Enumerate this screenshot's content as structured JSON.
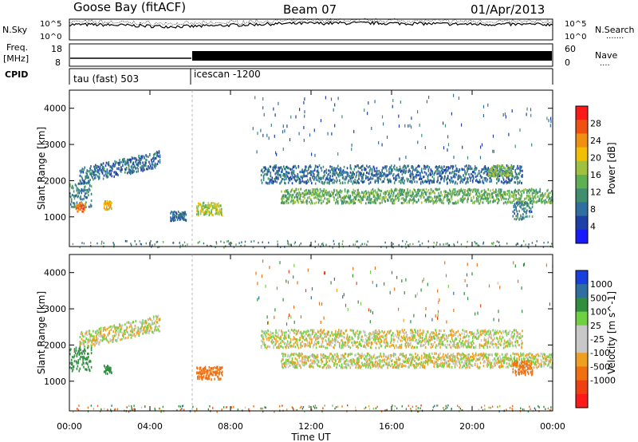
{
  "header": {
    "station": "Goose Bay (fitACF)",
    "beam": "Beam 07",
    "date": "01/Apr/2013"
  },
  "left_labels": {
    "nsky": "N.Sky",
    "freq": "Freq.",
    "freq_unit": "[MHz]",
    "cpid": "CPID"
  },
  "right_labels": {
    "nsearch": "N.Search",
    "nsearch_dots": "·······",
    "nave": "Nave",
    "nave_dots": "····"
  },
  "noise_panel": {
    "tick_top": "10^5",
    "tick_bottom": "10^0",
    "right_tick_top": "10^5",
    "right_tick_bottom": "10^0"
  },
  "freq_panel": {
    "left_ticks": [
      "18",
      "8"
    ],
    "right_ticks": [
      "60",
      "0"
    ]
  },
  "cpid_panel": {
    "segments": [
      "tau (fast) 503",
      "icescan -1200"
    ]
  },
  "colors": {
    "power_scale": [
      "#1a1aff",
      "#1f3fa8",
      "#2f6fa0",
      "#3f8f6f",
      "#5fb050",
      "#a0c040",
      "#f0c000",
      "#f09010",
      "#f05010",
      "#ff1a1a"
    ],
    "velocity_scale": [
      "#ff1a1a",
      "#f04010",
      "#f07010",
      "#f0a020",
      "#c8c8c8",
      "#c8c8c8",
      "#6fd040",
      "#2f8f3f",
      "#2f6fa0",
      "#1a3fdf"
    ]
  },
  "chart_data": [
    {
      "type": "heatmap",
      "name": "power",
      "title": "",
      "ylabel": "Slant Range [km]",
      "ylim": [
        180,
        4500
      ],
      "xlim_hours": [
        0,
        24
      ],
      "yticks": [
        "1000",
        "2000",
        "3000",
        "4000"
      ],
      "colorbar_label": "Power [dB]",
      "colorbar_ticks": [
        "4",
        "8",
        "12",
        "16",
        "20",
        "24",
        "28"
      ],
      "clim": [
        0,
        32
      ],
      "bands": [
        {
          "start_h": 0.0,
          "end_h": 1.1,
          "range_center": 1650,
          "range_width": 700,
          "level_db": 10
        },
        {
          "start_h": 0.5,
          "end_h": 4.5,
          "range_center": 2300,
          "range_width": 450,
          "level_db": 8
        },
        {
          "start_h": 0.3,
          "end_h": 0.8,
          "range_center": 1300,
          "range_width": 250,
          "level_db": 26
        },
        {
          "start_h": 1.7,
          "end_h": 2.1,
          "range_center": 1350,
          "range_width": 250,
          "level_db": 20
        },
        {
          "start_h": 5.0,
          "end_h": 5.8,
          "range_center": 1050,
          "range_width": 250,
          "level_db": 8
        },
        {
          "start_h": 6.3,
          "end_h": 7.6,
          "range_center": 1250,
          "range_width": 350,
          "level_db": 18
        },
        {
          "start_h": 9.5,
          "end_h": 22.5,
          "range_center": 2200,
          "range_width": 500,
          "level_db": 8
        },
        {
          "start_h": 10.5,
          "end_h": 24.0,
          "range_center": 1600,
          "range_width": 400,
          "level_db": 14
        },
        {
          "start_h": 20.8,
          "end_h": 22.0,
          "range_center": 2300,
          "range_width": 300,
          "level_db": 16
        },
        {
          "start_h": 22.0,
          "end_h": 23.0,
          "range_center": 1200,
          "range_width": 500,
          "level_db": 10
        }
      ]
    },
    {
      "type": "heatmap",
      "name": "velocity",
      "title": "",
      "xlabel": "Time UT",
      "ylabel": "Slant Range [km]",
      "ylim": [
        180,
        4500
      ],
      "xlim_hours": [
        0,
        24
      ],
      "xticks": [
        "00:00",
        "04:00",
        "08:00",
        "12:00",
        "16:00",
        "20:00",
        "00:00"
      ],
      "yticks": [
        "1000",
        "2000",
        "3000",
        "4000"
      ],
      "colorbar_label": "Velocity [m s^-1]",
      "colorbar_ticks": [
        "1000",
        "500",
        "100",
        "25",
        "-25",
        "-100",
        "-500",
        "-1000"
      ],
      "bands": [
        {
          "start_h": 0.0,
          "end_h": 1.1,
          "range_center": 1650,
          "range_width": 700,
          "velocity": 400
        },
        {
          "start_h": 0.5,
          "end_h": 4.5,
          "range_center": 2300,
          "range_width": 450,
          "velocity": 0
        },
        {
          "start_h": 1.7,
          "end_h": 2.1,
          "range_center": 1350,
          "range_width": 250,
          "velocity": 300
        },
        {
          "start_h": 6.3,
          "end_h": 7.6,
          "range_center": 1250,
          "range_width": 350,
          "velocity": -200
        },
        {
          "start_h": 9.5,
          "end_h": 22.5,
          "range_center": 2200,
          "range_width": 500,
          "velocity": 0
        },
        {
          "start_h": 10.5,
          "end_h": 24.0,
          "range_center": 1600,
          "range_width": 400,
          "velocity": 0
        },
        {
          "start_h": 22.0,
          "end_h": 23.0,
          "range_center": 1400,
          "range_width": 400,
          "velocity": -300
        }
      ]
    }
  ]
}
